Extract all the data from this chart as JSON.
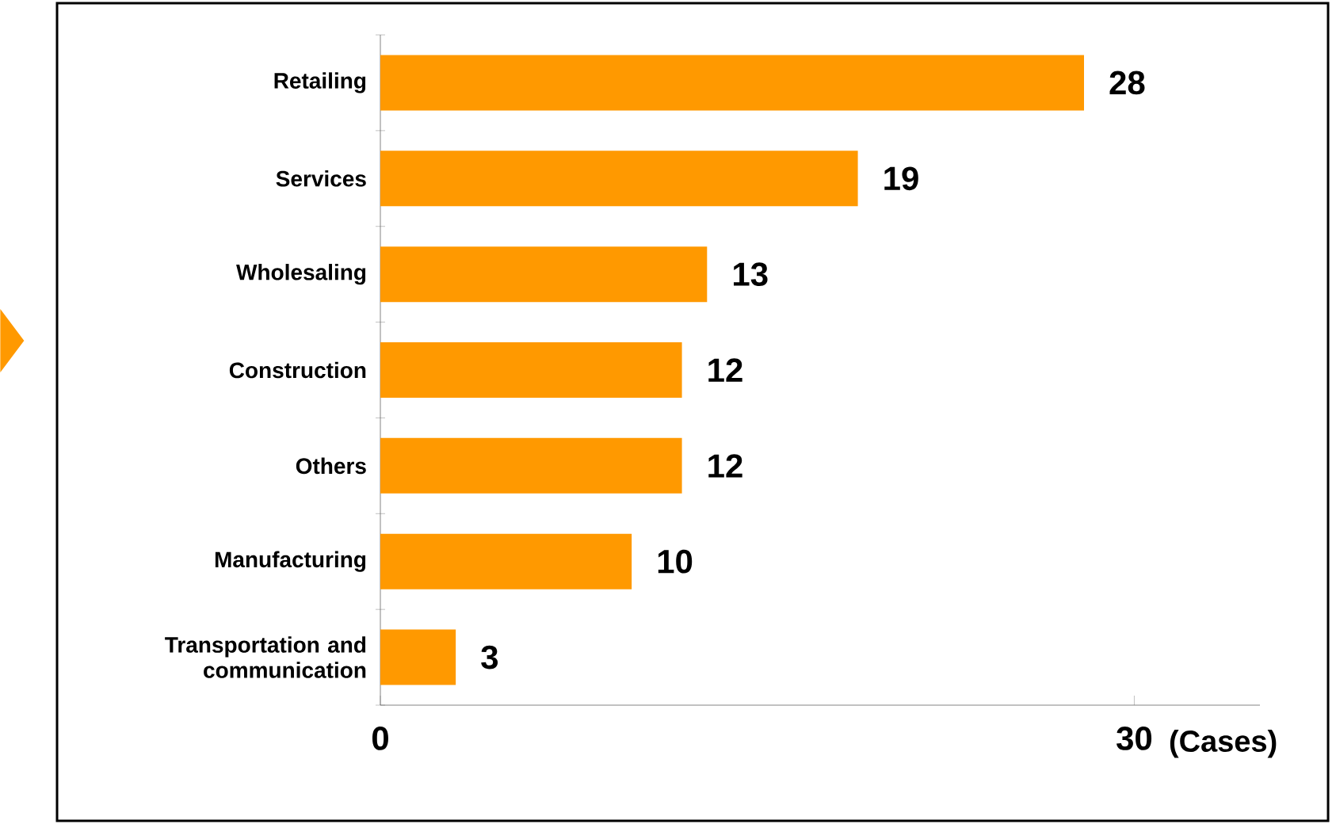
{
  "chart_data": {
    "type": "bar",
    "orientation": "horizontal",
    "xlabel": "(Cases)",
    "categories": [
      "Retailing",
      "Services",
      "Wholesaling",
      "Construction",
      "Others",
      "Manufacturing",
      "Transportation and communication"
    ],
    "values": [
      28,
      19,
      13,
      12,
      12,
      10,
      3
    ],
    "color": "#ff9900",
    "xlim": [
      0,
      35
    ],
    "xticks": [
      0,
      30
    ],
    "data_labels": true
  }
}
